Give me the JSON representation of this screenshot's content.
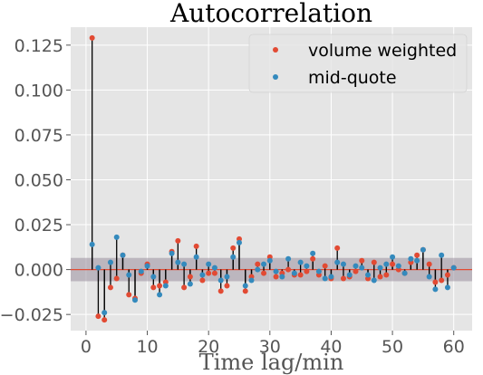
{
  "chart_data": {
    "type": "scatter",
    "title": "Autocorrelation",
    "xlabel": "Time lag/min",
    "ylabel": "",
    "xlim": [
      -2.5,
      63
    ],
    "ylim": [
      -0.034,
      0.135
    ],
    "xticks": [
      0,
      10,
      20,
      30,
      40,
      50,
      60
    ],
    "xtick_labels": [
      "0",
      "10",
      "20",
      "30",
      "40",
      "50",
      "60"
    ],
    "yticks": [
      -0.025,
      0,
      0.025,
      0.05,
      0.075,
      0.1,
      0.125
    ],
    "ytick_labels": [
      "−0.025",
      "0.000",
      "0.025",
      "0.050",
      "0.075",
      "0.100",
      "0.125"
    ],
    "grid": true,
    "legend_position": "upper-right",
    "confidence_band": [
      -0.0065,
      0.0065
    ],
    "zero_line_color": "#E24A33",
    "band_color": "#9B8F9F",
    "background_color": "#E5E5E5",
    "x": [
      1,
      2,
      3,
      4,
      5,
      6,
      7,
      8,
      9,
      10,
      11,
      12,
      13,
      14,
      15,
      16,
      17,
      18,
      19,
      20,
      21,
      22,
      23,
      24,
      25,
      26,
      27,
      28,
      29,
      30,
      31,
      32,
      33,
      34,
      35,
      36,
      37,
      38,
      39,
      40,
      41,
      42,
      43,
      44,
      45,
      46,
      47,
      48,
      49,
      50,
      51,
      52,
      53,
      54,
      55,
      56,
      57,
      58,
      59,
      60
    ],
    "series": [
      {
        "name": "volume weighted",
        "color": "#E24A33",
        "values": [
          0.129,
          -0.026,
          -0.028,
          -0.01,
          -0.005,
          0.008,
          -0.014,
          -0.016,
          -0.002,
          0.003,
          -0.01,
          -0.009,
          -0.007,
          0.01,
          0.016,
          -0.01,
          -0.004,
          0.013,
          -0.006,
          -0.002,
          -0.002,
          -0.012,
          -0.009,
          0.012,
          0.017,
          -0.012,
          -0.004,
          0.003,
          -0.002,
          0.007,
          -0.004,
          -0.002,
          0.0,
          -0.003,
          -0.003,
          -0.001,
          0.006,
          -0.003,
          0.002,
          -0.005,
          0.012,
          -0.005,
          -0.004,
          -0.001,
          0.005,
          -0.005,
          0.004,
          -0.004,
          -0.003,
          0.003,
          0.0,
          -0.002,
          0.004,
          0.008,
          0.011,
          0.003,
          -0.007,
          -0.006,
          -0.003,
          0.001
        ]
      },
      {
        "name": "mid-quote",
        "color": "#348ABD",
        "values": [
          0.014,
          0.001,
          -0.024,
          0.004,
          0.018,
          0.008,
          -0.003,
          -0.017,
          -0.001,
          0.002,
          -0.004,
          -0.014,
          -0.009,
          0.009,
          0.004,
          0.003,
          -0.008,
          0.007,
          -0.003,
          0.003,
          0.001,
          -0.006,
          -0.004,
          0.007,
          0.015,
          -0.009,
          -0.006,
          0.0,
          0.003,
          0.005,
          -0.001,
          -0.004,
          0.006,
          -0.002,
          0.004,
          0.002,
          0.009,
          -0.001,
          -0.005,
          -0.004,
          0.004,
          0.003,
          -0.003,
          0.002,
          0.001,
          -0.003,
          -0.006,
          0.001,
          0.003,
          0.007,
          0.002,
          -0.002,
          0.006,
          0.005,
          0.011,
          -0.004,
          -0.011,
          0.008,
          -0.01,
          0.001
        ]
      }
    ]
  }
}
